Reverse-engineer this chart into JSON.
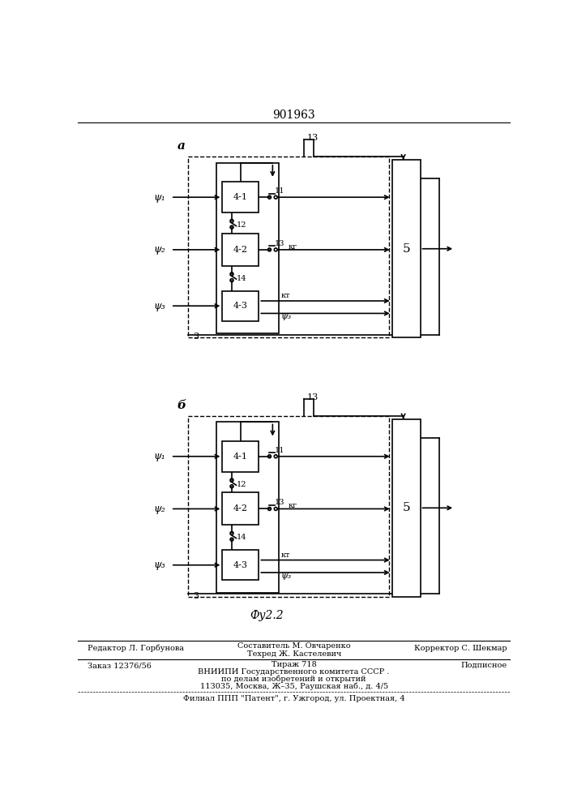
{
  "title": "901963",
  "fig_label_a": "а",
  "fig_label_b": "б",
  "fig_caption": "Фу2.2",
  "bottom_line1_left": "Редактор Л. Горбунова",
  "bottom_line1_mid": "Составитель М. Овчаренко",
  "bottom_line2_mid": "Техред Ж. Кастелевич",
  "bottom_line1_right": "Корректор С. Шекмар",
  "bottom_order": "Заказ 12376/56",
  "bottom_tirazh": "Тираж 718",
  "bottom_podpisnoe": "Подписное",
  "bottom_vnipi": "ВНИИПИ Государственного комитета СССР .",
  "bottom_po_delam": "по делам изобретений и открытий",
  "bottom_address": "113035, Москва, Ж–35, Раушская наб., д. 4/5",
  "bottom_filial": "Филиал ППП \"Патент\", г. Ужгород, ул. Проектная, 4"
}
